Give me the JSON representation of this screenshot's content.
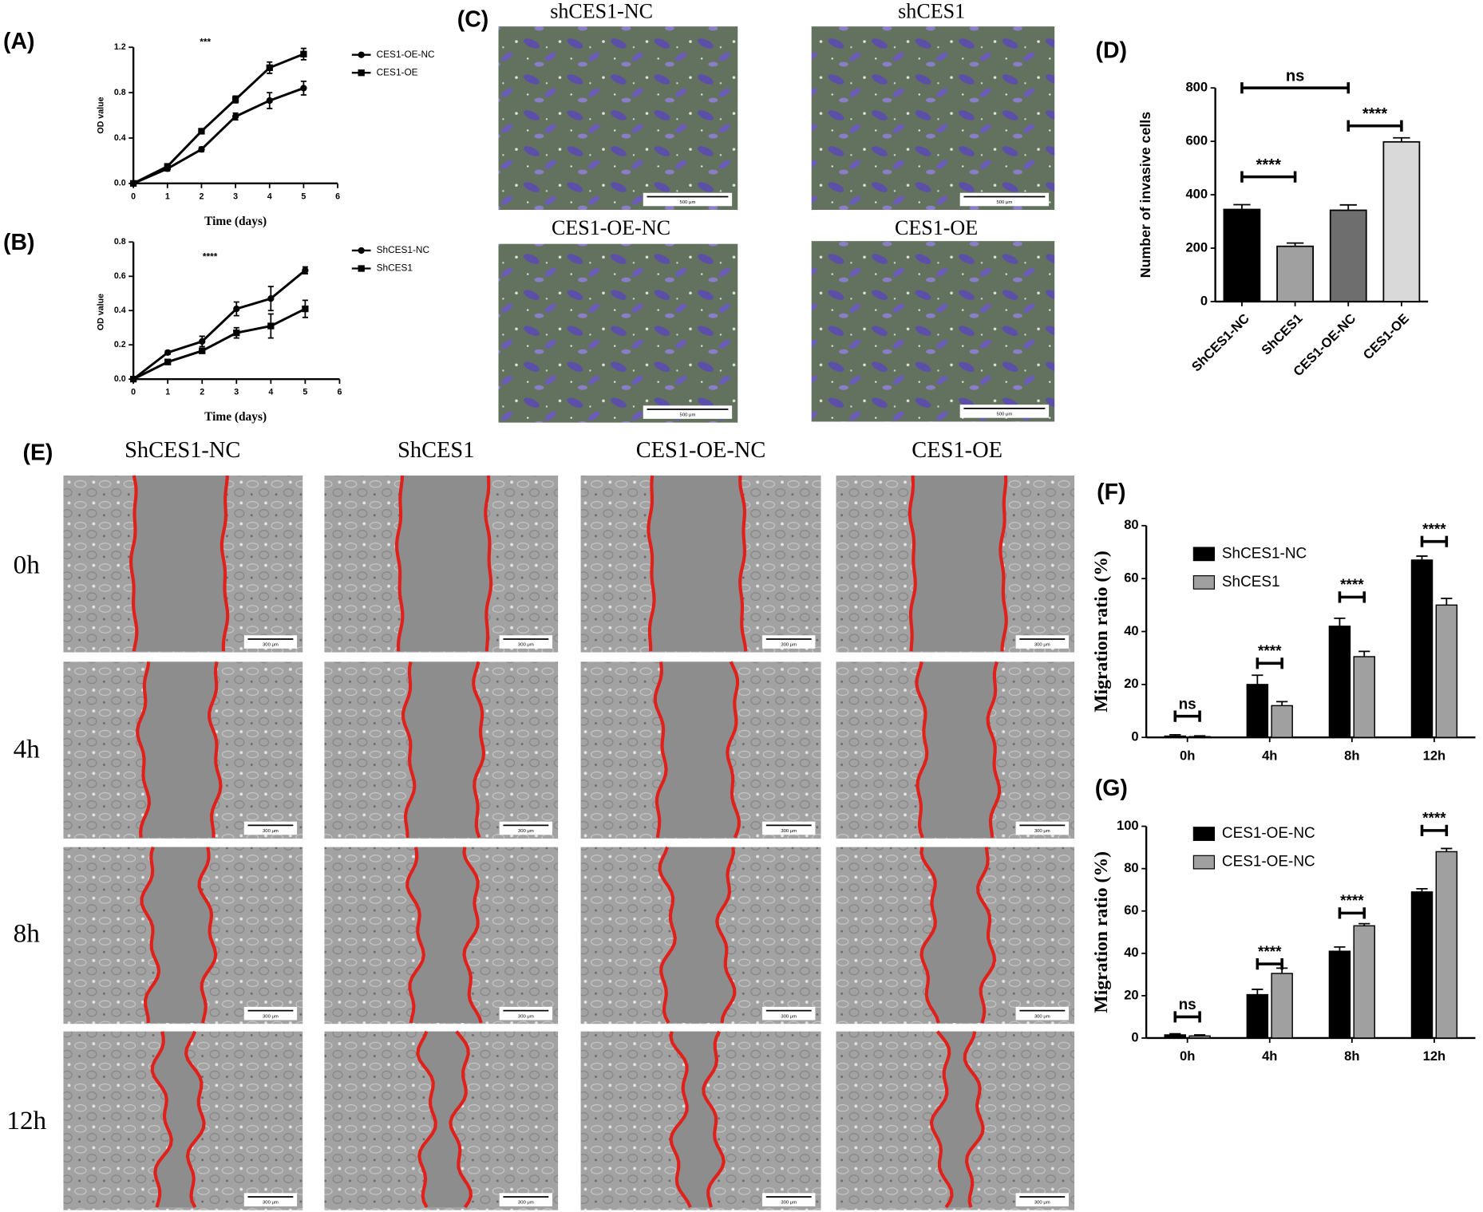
{
  "chart_data": [
    {
      "type": "line",
      "panel": "(A)",
      "annotation": "***",
      "xlabel": "Time (days)",
      "ylabel": "OD value",
      "x": [
        0,
        1,
        2,
        3,
        4,
        5
      ],
      "xlim": [
        0,
        6
      ],
      "xticks": [
        0,
        1,
        2,
        3,
        4,
        5,
        6
      ],
      "ylim": [
        0,
        1.2
      ],
      "yticks": [
        {
          "value": 0,
          "label": "0.0"
        },
        0.4,
        0.8,
        1.2
      ],
      "series": [
        {
          "name": "CES1-OE-NC",
          "color": "#000000",
          "marker": "circle",
          "values": [
            0,
            0.13,
            0.3,
            0.59,
            0.73,
            0.84
          ],
          "errors": [
            0,
            0.02,
            0.02,
            0.03,
            0.07,
            0.06
          ]
        },
        {
          "name": "CES1-OE",
          "color": "#000000",
          "marker": "square",
          "values": [
            0,
            0.15,
            0.46,
            0.74,
            1.02,
            1.14
          ],
          "errors": [
            0,
            0.02,
            0.02,
            0.03,
            0.05,
            0.05
          ]
        }
      ]
    },
    {
      "type": "line",
      "panel": "(B)",
      "annotation": "****",
      "xlabel": "Time (days)",
      "ylabel": "OD value",
      "x": [
        0,
        1,
        2,
        3,
        4,
        5
      ],
      "xlim": [
        0,
        6
      ],
      "xticks": [
        0,
        1,
        2,
        3,
        4,
        5,
        6
      ],
      "ylim": [
        0,
        0.8
      ],
      "yticks": [
        {
          "value": 0,
          "label": "0.0"
        },
        0.2,
        0.4,
        0.6,
        0.8
      ],
      "series": [
        {
          "name": "ShCES1-NC",
          "color": "#000000",
          "marker": "circle",
          "values": [
            0,
            0.155,
            0.22,
            0.41,
            0.47,
            0.635
          ],
          "errors": [
            0,
            0.01,
            0.03,
            0.04,
            0.07,
            0.02
          ]
        },
        {
          "name": "ShCES1",
          "color": "#000000",
          "marker": "square",
          "values": [
            0,
            0.1,
            0.165,
            0.27,
            0.31,
            0.41
          ],
          "errors": [
            0,
            0.01,
            0.01,
            0.03,
            0.07,
            0.05
          ]
        }
      ]
    },
    {
      "type": "bar",
      "panel": "(D)",
      "ylabel": "Number of invasive cells",
      "categories": [
        "ShCES1-NC",
        "ShCES1",
        "CES1-OE-NC",
        "CES1-OE"
      ],
      "values": [
        345,
        207,
        342,
        598
      ],
      "errors": [
        18,
        12,
        20,
        15
      ],
      "colors": [
        "#000000",
        "#a0a0a0",
        "#6e6e6e",
        "#d9d9d9"
      ],
      "ylim": [
        0,
        800
      ],
      "yticks": [
        0,
        200,
        400,
        600,
        800
      ],
      "annotations": [
        {
          "text": "ns",
          "from": "ShCES1-NC",
          "to": "CES1-OE-NC",
          "y": 800
        },
        {
          "text": "****",
          "from": "ShCES1-NC",
          "to": "ShCES1",
          "y": 467
        },
        {
          "text": "****",
          "from": "CES1-OE-NC",
          "to": "CES1-OE",
          "y": 658
        }
      ]
    },
    {
      "type": "grouped_bar",
      "panel": "(F)",
      "ylabel": "Migration ratio (%)",
      "categories": [
        "0h",
        "4h",
        "8h",
        "12h"
      ],
      "series": [
        {
          "name": "ShCES1-NC",
          "color": "#000000",
          "values": [
            0.5,
            20,
            42,
            67
          ],
          "errors": [
            0.5,
            3.5,
            3,
            1.5
          ]
        },
        {
          "name": "ShCES1",
          "color": "#a0a0a0",
          "values": [
            0.3,
            12,
            30.5,
            50
          ],
          "errors": [
            0.3,
            1.5,
            2,
            2.5
          ]
        }
      ],
      "ylim": [
        0,
        80
      ],
      "yticks": [
        0,
        20,
        40,
        60,
        80
      ],
      "annotations": [
        {
          "text": "ns",
          "category": "0h",
          "y": 8
        },
        {
          "text": "****",
          "category": "4h",
          "y": 28
        },
        {
          "text": "****",
          "category": "8h",
          "y": 53
        },
        {
          "text": "****",
          "category": "12h",
          "y": 74
        }
      ]
    },
    {
      "type": "grouped_bar",
      "panel": "(G)",
      "ylabel": "Migration ratio (%)",
      "categories": [
        "0h",
        "4h",
        "8h",
        "12h"
      ],
      "series": [
        {
          "name": "CES1-OE-NC",
          "color": "#000000",
          "values": [
            1.5,
            20.5,
            41,
            69
          ],
          "errors": [
            0.5,
            2.5,
            2,
            1.5
          ]
        },
        {
          "name": "CES1-OE-NC",
          "color": "#a0a0a0",
          "values": [
            1,
            30.5,
            53,
            88
          ],
          "errors": [
            0.5,
            2.5,
            1,
            1.5
          ]
        }
      ],
      "ylim": [
        0,
        100
      ],
      "yticks": [
        0,
        20,
        40,
        60,
        80,
        100
      ],
      "annotations": [
        {
          "text": "ns",
          "category": "0h",
          "y": 10
        },
        {
          "text": "****",
          "category": "4h",
          "y": 35
        },
        {
          "text": "****",
          "category": "8h",
          "y": 59
        },
        {
          "text": "****",
          "category": "12h",
          "y": 98
        }
      ]
    }
  ],
  "invasion_images": {
    "panel": "(C)",
    "labels": [
      "shCES1-NC",
      "shCES1",
      "CES1-OE-NC",
      "CES1-OE"
    ],
    "scale_bar": "500 μm"
  },
  "wound_images": {
    "panel": "(E)",
    "columns": [
      "ShCES1-NC",
      "ShCES1",
      "CES1-OE-NC",
      "CES1-OE"
    ],
    "rows": [
      "0h",
      "4h",
      "8h",
      "12h"
    ],
    "scale_bar": "300 μm"
  }
}
